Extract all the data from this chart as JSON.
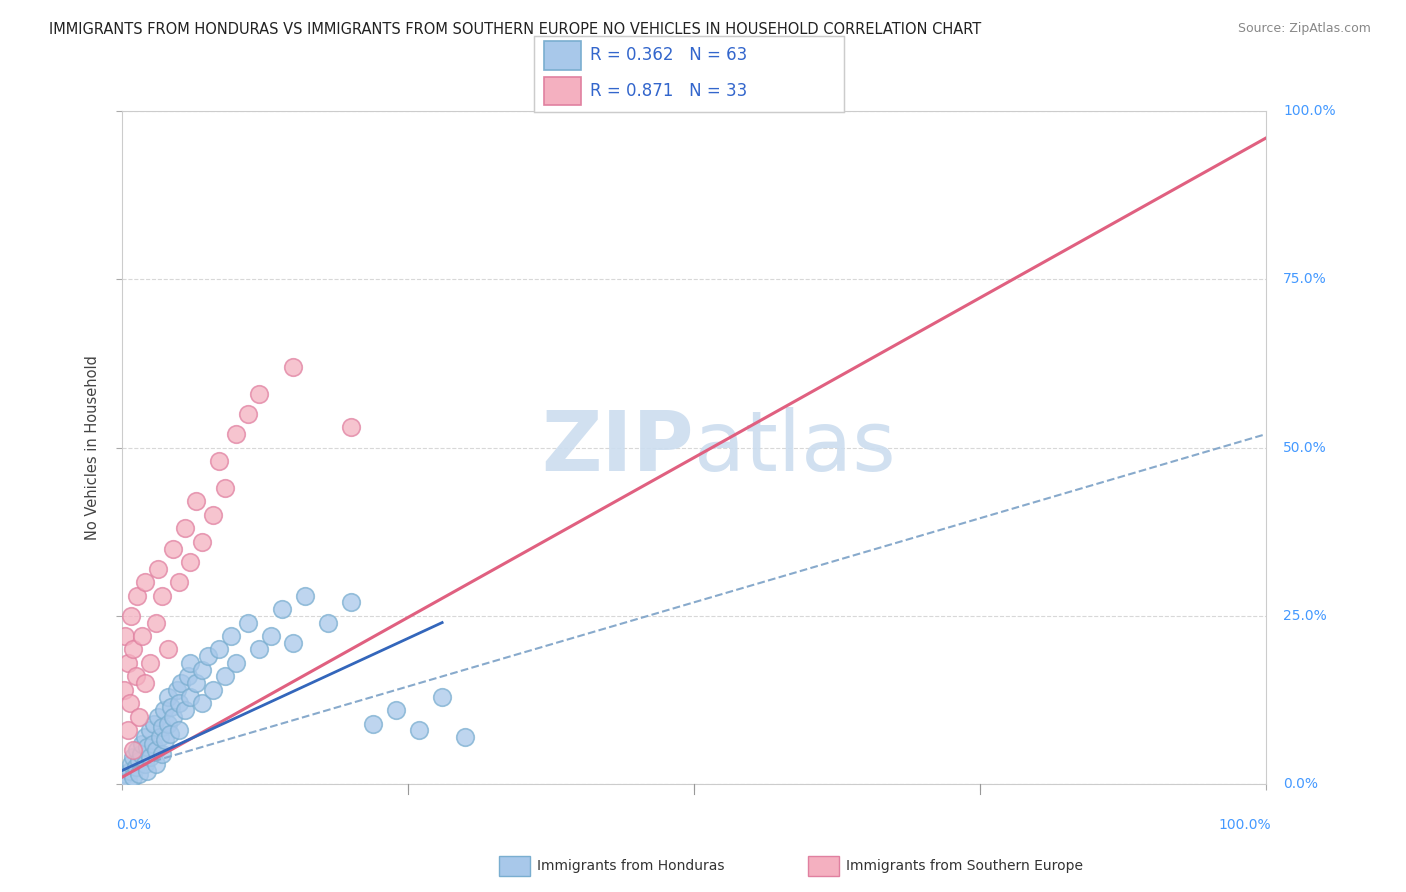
{
  "title": "IMMIGRANTS FROM HONDURAS VS IMMIGRANTS FROM SOUTHERN EUROPE NO VEHICLES IN HOUSEHOLD CORRELATION CHART",
  "source": "Source: ZipAtlas.com",
  "ylabel": "No Vehicles in Household",
  "legend_entries": [
    {
      "label": "Immigrants from Honduras",
      "facecolor": "#a8c8ea",
      "edgecolor": "#7aaed0",
      "R": 0.362,
      "N": 63
    },
    {
      "label": "Immigrants from Southern Europe",
      "facecolor": "#f4b0c0",
      "edgecolor": "#e080a0",
      "R": 0.871,
      "N": 33
    }
  ],
  "honduras_scatter": [
    [
      0.3,
      1.5
    ],
    [
      0.5,
      0.5
    ],
    [
      0.7,
      2.0
    ],
    [
      0.8,
      3.0
    ],
    [
      1.0,
      1.0
    ],
    [
      1.0,
      4.0
    ],
    [
      1.2,
      2.5
    ],
    [
      1.3,
      5.0
    ],
    [
      1.5,
      3.5
    ],
    [
      1.5,
      1.5
    ],
    [
      1.7,
      4.5
    ],
    [
      1.8,
      6.0
    ],
    [
      2.0,
      3.0
    ],
    [
      2.0,
      7.0
    ],
    [
      2.2,
      5.5
    ],
    [
      2.2,
      2.0
    ],
    [
      2.5,
      8.0
    ],
    [
      2.5,
      4.0
    ],
    [
      2.7,
      6.0
    ],
    [
      2.8,
      9.0
    ],
    [
      3.0,
      5.0
    ],
    [
      3.0,
      3.0
    ],
    [
      3.2,
      10.0
    ],
    [
      3.3,
      7.0
    ],
    [
      3.5,
      8.5
    ],
    [
      3.5,
      4.5
    ],
    [
      3.7,
      11.0
    ],
    [
      3.8,
      6.5
    ],
    [
      4.0,
      9.0
    ],
    [
      4.0,
      13.0
    ],
    [
      4.2,
      7.5
    ],
    [
      4.3,
      11.5
    ],
    [
      4.5,
      10.0
    ],
    [
      4.8,
      14.0
    ],
    [
      5.0,
      8.0
    ],
    [
      5.0,
      12.0
    ],
    [
      5.2,
      15.0
    ],
    [
      5.5,
      11.0
    ],
    [
      5.8,
      16.0
    ],
    [
      6.0,
      13.0
    ],
    [
      6.0,
      18.0
    ],
    [
      6.5,
      15.0
    ],
    [
      7.0,
      17.0
    ],
    [
      7.0,
      12.0
    ],
    [
      7.5,
      19.0
    ],
    [
      8.0,
      14.0
    ],
    [
      8.5,
      20.0
    ],
    [
      9.0,
      16.0
    ],
    [
      9.5,
      22.0
    ],
    [
      10.0,
      18.0
    ],
    [
      11.0,
      24.0
    ],
    [
      12.0,
      20.0
    ],
    [
      13.0,
      22.0
    ],
    [
      14.0,
      26.0
    ],
    [
      15.0,
      21.0
    ],
    [
      16.0,
      28.0
    ],
    [
      18.0,
      24.0
    ],
    [
      20.0,
      27.0
    ],
    [
      22.0,
      9.0
    ],
    [
      24.0,
      11.0
    ],
    [
      26.0,
      8.0
    ],
    [
      28.0,
      13.0
    ],
    [
      30.0,
      7.0
    ]
  ],
  "southern_europe_scatter": [
    [
      0.2,
      14.0
    ],
    [
      0.3,
      22.0
    ],
    [
      0.5,
      8.0
    ],
    [
      0.5,
      18.0
    ],
    [
      0.7,
      12.0
    ],
    [
      0.8,
      25.0
    ],
    [
      1.0,
      5.0
    ],
    [
      1.0,
      20.0
    ],
    [
      1.2,
      16.0
    ],
    [
      1.3,
      28.0
    ],
    [
      1.5,
      10.0
    ],
    [
      1.8,
      22.0
    ],
    [
      2.0,
      30.0
    ],
    [
      2.0,
      15.0
    ],
    [
      2.5,
      18.0
    ],
    [
      3.0,
      24.0
    ],
    [
      3.2,
      32.0
    ],
    [
      3.5,
      28.0
    ],
    [
      4.0,
      20.0
    ],
    [
      4.5,
      35.0
    ],
    [
      5.0,
      30.0
    ],
    [
      5.5,
      38.0
    ],
    [
      6.0,
      33.0
    ],
    [
      6.5,
      42.0
    ],
    [
      7.0,
      36.0
    ],
    [
      8.0,
      40.0
    ],
    [
      8.5,
      48.0
    ],
    [
      9.0,
      44.0
    ],
    [
      10.0,
      52.0
    ],
    [
      11.0,
      55.0
    ],
    [
      12.0,
      58.0
    ],
    [
      15.0,
      62.0
    ],
    [
      20.0,
      53.0
    ]
  ],
  "honduras_line_solid": {
    "x1": 0.0,
    "y1": 2.0,
    "x2": 28.0,
    "y2": 24.0
  },
  "honduras_line_dashed": {
    "x1": 0.0,
    "y1": 2.0,
    "x2": 100.0,
    "y2": 52.0
  },
  "southern_europe_line": {
    "x1": 0.0,
    "y1": 1.0,
    "x2": 100.0,
    "y2": 96.0
  },
  "plot_color_honduras": "#a8c8ea",
  "edge_color_honduras": "#7aaed0",
  "line_color_honduras_solid": "#3366bb",
  "line_color_honduras_dashed": "#88aacc",
  "plot_color_southern": "#f4b0c0",
  "edge_color_southern": "#e080a0",
  "line_color_southern": "#e06080",
  "background_color": "#ffffff",
  "grid_color": "#d8d8d8",
  "title_color": "#222222",
  "title_fontsize": 10.5,
  "axis_tick_color": "#4499ff",
  "watermark_color": "#ccddef",
  "xlim": [
    0,
    100
  ],
  "ylim": [
    0,
    100
  ],
  "xticks": [
    0,
    25,
    50,
    75,
    100
  ],
  "yticks": [
    0,
    25,
    50,
    75,
    100
  ],
  "xtick_labels": [
    "0.0%",
    "",
    "",
    "",
    "100.0%"
  ],
  "ytick_labels": [
    "0.0%",
    "25.0%",
    "50.0%",
    "75.0%",
    "100.0%"
  ]
}
